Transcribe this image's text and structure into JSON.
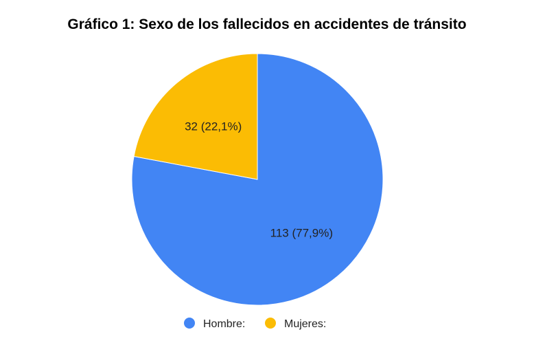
{
  "chart_data": {
    "type": "pie",
    "title": "Gráfico 1: Sexo de los fallecidos en accidentes de tránsito",
    "slices": [
      {
        "name": "Hombre:",
        "value": 113,
        "percent": 77.9,
        "label": "113 (77,9%)",
        "color": "#4285f4"
      },
      {
        "name": "Mujeres:",
        "value": 32,
        "percent": 22.1,
        "label": "32 (22,1%)",
        "color": "#fbbc04"
      }
    ],
    "start_angle": "top, clockwise",
    "legend_position": "bottom"
  }
}
